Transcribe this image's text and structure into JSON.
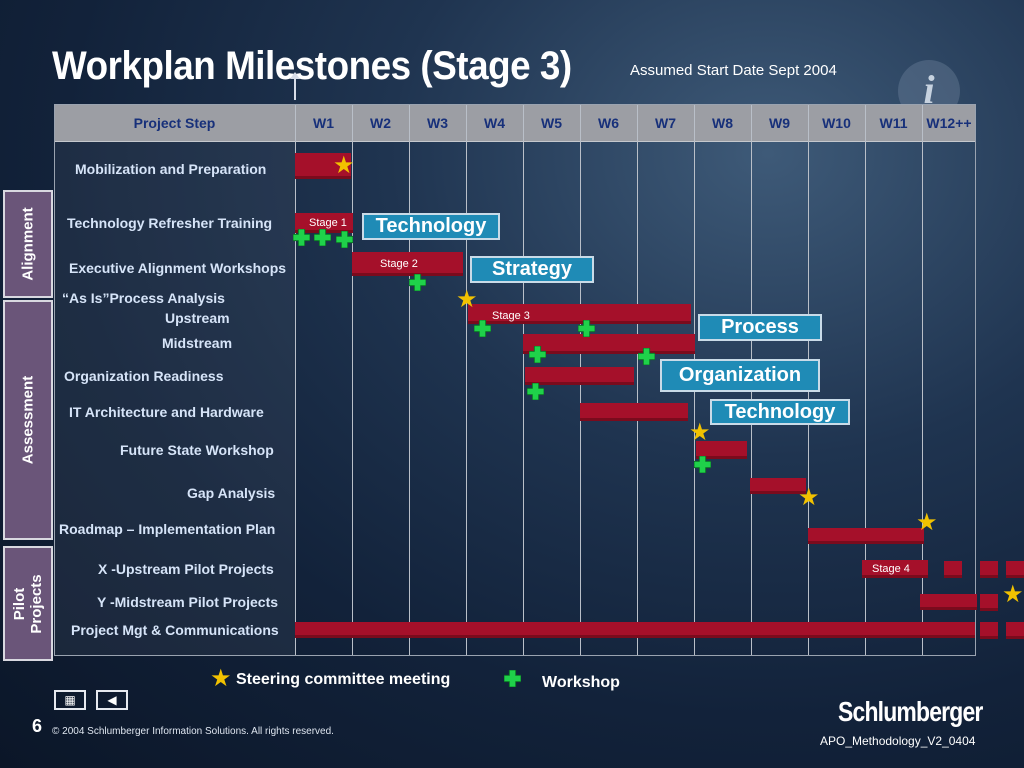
{
  "title": "Workplan Milestones (Stage 3)",
  "subtitle": "Assumed Start Date Sept 2004",
  "header": {
    "step": "Project Step",
    "weeks": [
      "W1",
      "W2",
      "W3",
      "W4",
      "W5",
      "W6",
      "W7",
      "W8",
      "W9",
      "W10",
      "W11",
      "W12++"
    ]
  },
  "groups": {
    "alignment": "Alignment",
    "assessment": "Assessment",
    "pilot": [
      "Pilot",
      "Projects"
    ]
  },
  "rows": [
    "Mobilization and Preparation",
    "Technology Refresher Training",
    "Executive Alignment Workshops",
    "“As Is”Process Analysis",
    "Upstream",
    "Midstream",
    "Organization Readiness",
    "IT Architecture and Hardware",
    "Future State Workshop",
    "Gap  Analysis",
    "Roadmap – Implementation Plan",
    "X -Upstream Pilot Projects",
    "Y -Midstream  Pilot Projects",
    "Project Mgt & Communications"
  ],
  "stages": [
    "Stage 1",
    "Stage 2",
    "Stage 3",
    "Stage 4"
  ],
  "tags": [
    "Technology",
    "Strategy",
    "Process",
    "Organization",
    "Technology"
  ],
  "legend": {
    "steering": "Steering committee meeting",
    "workshop": "Workshop"
  },
  "footer": {
    "page": "6",
    "copyright": "© 2004 Schlumberger Information Solutions. All rights reserved.",
    "brand": "Schlumberger",
    "doc_id": "APO_Methodology_V2_0404"
  },
  "colors": {
    "bar": "#a5102a",
    "tag": "#1f8bb6",
    "star": "#f2c200",
    "plus": "#1fd14a",
    "side": "#6a5579"
  },
  "icons": [
    "info-icon",
    "star-icon",
    "plus-icon",
    "menu-icon",
    "back-icon"
  ]
}
